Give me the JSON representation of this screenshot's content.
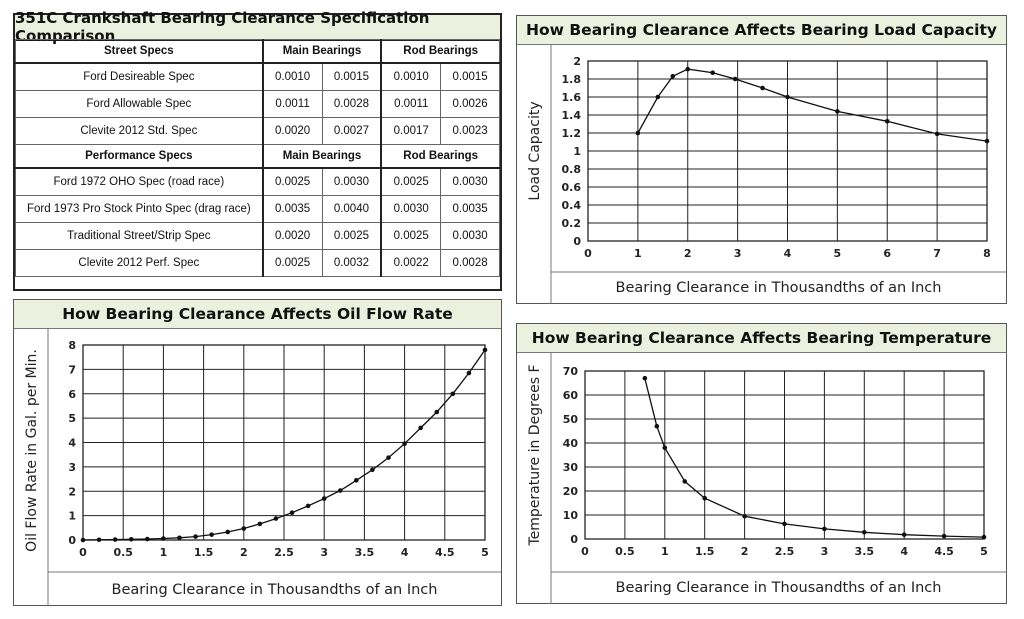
{
  "table": {
    "title": "351C Crankshaft Bearing Clearance Specification Comparison",
    "sections": [
      {
        "header": [
          "Street Specs",
          "Main Bearings",
          "Rod Bearings"
        ],
        "rows": [
          {
            "name": "Ford Desireable Spec",
            "values": [
              "0.0010",
              "0.0015",
              "0.0010",
              "0.0015"
            ]
          },
          {
            "name": "Ford Allowable Spec",
            "values": [
              "0.0011",
              "0.0028",
              "0.0011",
              "0.0026"
            ]
          },
          {
            "name": "Clevite 2012 Std. Spec",
            "values": [
              "0.0020",
              "0.0027",
              "0.0017",
              "0.0023"
            ]
          }
        ]
      },
      {
        "header": [
          "Performance Specs",
          "Main Bearings",
          "Rod Bearings"
        ],
        "rows": [
          {
            "name": "Ford 1972 OHO Spec (road race)",
            "values": [
              "0.0025",
              "0.0030",
              "0.0025",
              "0.0030"
            ]
          },
          {
            "name": "Ford 1973 Pro Stock Pinto Spec (drag race)",
            "values": [
              "0.0035",
              "0.0040",
              "0.0030",
              "0.0035"
            ]
          },
          {
            "name": "Traditional Street/Strip Spec",
            "values": [
              "0.0020",
              "0.0025",
              "0.0025",
              "0.0030"
            ]
          },
          {
            "name": "Clevite 2012 Perf. Spec",
            "values": [
              "0.0025",
              "0.0032",
              "0.0022",
              "0.0028"
            ]
          }
        ]
      }
    ]
  },
  "chart_data": [
    {
      "id": "load",
      "type": "line",
      "title": "How Bearing Clearance Affects Bearing Load Capacity",
      "xlabel": "Bearing Clearance in Thousandths of an Inch",
      "ylabel": "Load Capacity",
      "xlim": [
        0,
        8
      ],
      "ylim": [
        0,
        2
      ],
      "xticks": [
        0,
        1,
        2,
        3,
        4,
        5,
        6,
        7,
        8
      ],
      "xtick_labels": [
        "0",
        "1",
        "2",
        "3",
        "4",
        "5",
        "6",
        "7",
        "8"
      ],
      "yticks": [
        0,
        0.2,
        0.4,
        0.6,
        0.8,
        1,
        1.2,
        1.4,
        1.6,
        1.8,
        2
      ],
      "ytick_labels": [
        "0",
        "0.2",
        "0.4",
        "0.6",
        "0.8",
        "1",
        "1.2",
        "1.4",
        "1.6",
        "1.8",
        "2"
      ],
      "grid": true,
      "x": [
        1,
        1.4,
        1.7,
        2,
        2.5,
        2.95,
        3.5,
        4,
        5,
        6,
        7,
        8
      ],
      "y": [
        1.2,
        1.6,
        1.83,
        1.91,
        1.87,
        1.8,
        1.7,
        1.6,
        1.44,
        1.33,
        1.19,
        1.11
      ]
    },
    {
      "id": "oil",
      "type": "line",
      "title": "How Bearing Clearance Affects Oil Flow Rate",
      "xlabel": "Bearing Clearance in Thousandths of an Inch",
      "ylabel": "Oil Flow Rate in Gal. per Min.",
      "xlim": [
        0,
        5
      ],
      "ylim": [
        0,
        8
      ],
      "xticks": [
        0,
        0.5,
        1,
        1.5,
        2,
        2.5,
        3,
        3.5,
        4,
        4.5,
        5
      ],
      "xtick_labels": [
        "0",
        "0.5",
        "1",
        "1.5",
        "2",
        "2.5",
        "3",
        "3.5",
        "4",
        "4.5",
        "5"
      ],
      "yticks": [
        0,
        1,
        2,
        3,
        4,
        5,
        6,
        7,
        8
      ],
      "ytick_labels": [
        "0",
        "1",
        "2",
        "3",
        "4",
        "5",
        "6",
        "7",
        "8"
      ],
      "grid": true,
      "x": [
        0,
        0.2,
        0.4,
        0.6,
        0.8,
        1.0,
        1.2,
        1.4,
        1.6,
        1.8,
        2.0,
        2.2,
        2.4,
        2.6,
        2.8,
        3.0,
        3.2,
        3.4,
        3.6,
        3.8,
        4.0,
        4.2,
        4.4,
        4.6,
        4.8,
        5.0
      ],
      "y": [
        0,
        0.01,
        0.02,
        0.03,
        0.04,
        0.06,
        0.09,
        0.14,
        0.22,
        0.33,
        0.47,
        0.66,
        0.88,
        1.12,
        1.4,
        1.7,
        2.03,
        2.45,
        2.88,
        3.38,
        3.95,
        4.6,
        5.25,
        6.0,
        6.85,
        7.8
      ]
    },
    {
      "id": "temp",
      "type": "line",
      "title": "How Bearing Clearance Affects Bearing Temperature",
      "xlabel": "Bearing Clearance in Thousandths of an Inch",
      "ylabel": "Temperature in Degrees F",
      "xlim": [
        0,
        5
      ],
      "ylim": [
        0,
        70
      ],
      "xticks": [
        0,
        0.5,
        1,
        1.5,
        2,
        2.5,
        3,
        3.5,
        4,
        4.5,
        5
      ],
      "xtick_labels": [
        "0",
        "0.5",
        "1",
        "1.5",
        "2",
        "2.5",
        "3",
        "3.5",
        "4",
        "4.5",
        "5"
      ],
      "yticks": [
        0,
        10,
        20,
        30,
        40,
        50,
        60,
        70
      ],
      "ytick_labels": [
        "0",
        "10",
        "20",
        "30",
        "40",
        "50",
        "60",
        "70"
      ],
      "grid": true,
      "x": [
        0.75,
        0.9,
        1.0,
        1.25,
        1.5,
        2.0,
        2.5,
        3.0,
        3.5,
        4.0,
        4.5,
        5.0
      ],
      "y": [
        67,
        47,
        38,
        24,
        17,
        9.5,
        6.3,
        4.2,
        2.8,
        1.8,
        1.2,
        0.8
      ]
    }
  ]
}
